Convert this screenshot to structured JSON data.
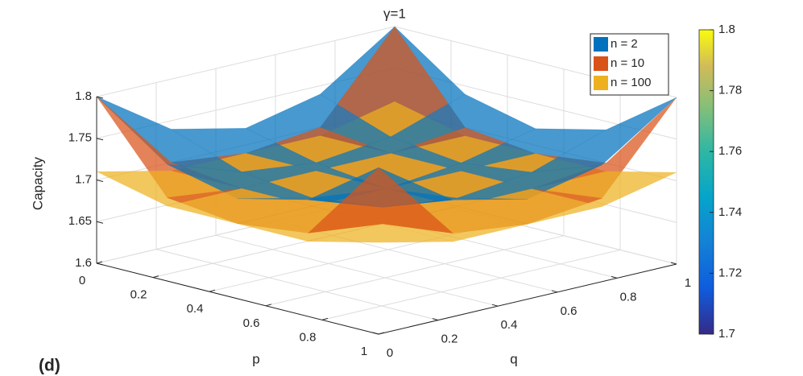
{
  "chart_data": {
    "type": "surface3d",
    "title": "γ=1",
    "panel_label": "(d)",
    "xlabel": "p",
    "ylabel": "q",
    "zlabel": "Capacity",
    "x": [
      0,
      0.25,
      0.5,
      0.75,
      1
    ],
    "y": [
      0,
      0.25,
      0.5,
      0.75,
      1
    ],
    "xlim": [
      0,
      1
    ],
    "ylim": [
      0,
      1
    ],
    "zlim": [
      1.6,
      1.8
    ],
    "xticks": [
      0,
      0.2,
      0.4,
      0.6,
      0.8,
      1
    ],
    "yticks": [
      0,
      0.2,
      0.4,
      0.6,
      0.8,
      1
    ],
    "zticks": [
      1.6,
      1.65,
      1.7,
      1.75,
      1.8
    ],
    "grid": true,
    "legend_loc": "northeast",
    "colorbar": {
      "lim": [
        1.7,
        1.8
      ],
      "ticks": [
        1.7,
        1.72,
        1.74,
        1.76,
        1.78,
        1.8
      ]
    },
    "series": [
      {
        "name": "n = 2",
        "color": "#0072bd",
        "values": [
          [
            1.8,
            1.74,
            1.72,
            1.74,
            1.8
          ],
          [
            1.74,
            1.71,
            1.7,
            1.71,
            1.74
          ],
          [
            1.72,
            1.7,
            1.69,
            1.7,
            1.72
          ],
          [
            1.74,
            1.71,
            1.7,
            1.71,
            1.74
          ],
          [
            1.8,
            1.74,
            1.72,
            1.74,
            1.8
          ]
        ]
      },
      {
        "name": "n = 10",
        "color": "#d95319",
        "values": [
          [
            1.8,
            1.7,
            1.69,
            1.7,
            1.8
          ],
          [
            1.7,
            1.69,
            1.69,
            1.69,
            1.7
          ],
          [
            1.69,
            1.69,
            1.69,
            1.69,
            1.69
          ],
          [
            1.7,
            1.69,
            1.69,
            1.69,
            1.7
          ],
          [
            1.8,
            1.7,
            1.69,
            1.7,
            1.8
          ]
        ]
      },
      {
        "name": "n = 100",
        "color": "#edb120",
        "values": [
          [
            1.71,
            1.69,
            1.69,
            1.69,
            1.71
          ],
          [
            1.69,
            1.69,
            1.69,
            1.69,
            1.69
          ],
          [
            1.69,
            1.69,
            1.69,
            1.69,
            1.69
          ],
          [
            1.69,
            1.69,
            1.69,
            1.69,
            1.69
          ],
          [
            1.71,
            1.69,
            1.69,
            1.69,
            1.71
          ]
        ]
      }
    ]
  }
}
